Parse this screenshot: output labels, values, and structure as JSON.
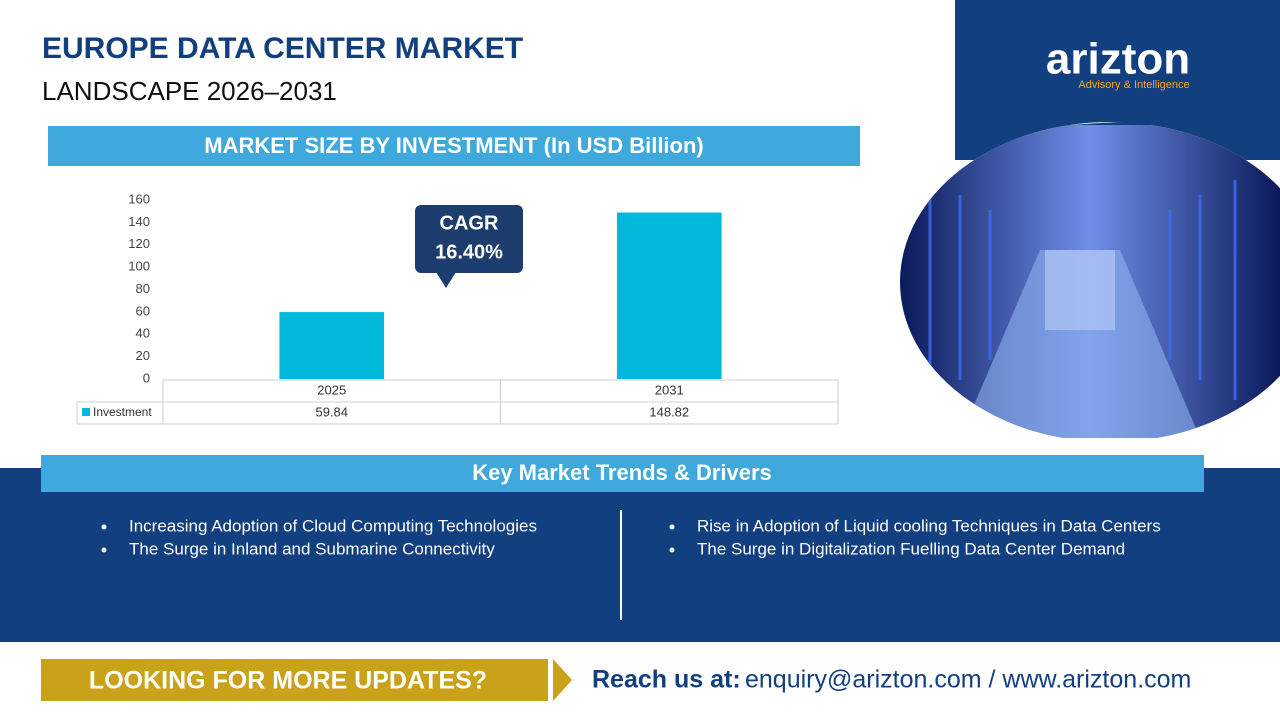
{
  "header": {
    "title": "EUROPE DATA CENTER MARKET",
    "subtitle": "LANDSCAPE 2026–2031"
  },
  "logo": {
    "name": "arizton",
    "tagline": "Advisory & Intelligence"
  },
  "chart_data": {
    "type": "bar",
    "title": "MARKET SIZE BY INVESTMENT (In USD Billion)",
    "categories": [
      "2025",
      "2031"
    ],
    "series": [
      {
        "name": "Investment",
        "color": "#00b8d9",
        "values": [
          59.84,
          148.82
        ]
      }
    ],
    "ylim": [
      0,
      160
    ],
    "yticks": [
      0,
      20,
      40,
      60,
      80,
      100,
      120,
      140,
      160
    ],
    "grid": false,
    "annotation": {
      "label": "CAGR",
      "text": "16.40%"
    }
  },
  "trends": {
    "title": "Key Market Trends & Drivers",
    "columns": [
      [
        "Increasing Adoption of Cloud Computing Technologies",
        "The Surge in Inland and Submarine Connectivity"
      ],
      [
        "Rise in Adoption of Liquid cooling Techniques in Data Centers",
        "The Surge in Digitalization Fuelling Data Center Demand"
      ]
    ]
  },
  "footer": {
    "cta": "LOOKING FOR MORE UPDATES?",
    "contact_label": "Reach us at:",
    "contact": "enquiry@arizton.com / www.arizton.com"
  }
}
